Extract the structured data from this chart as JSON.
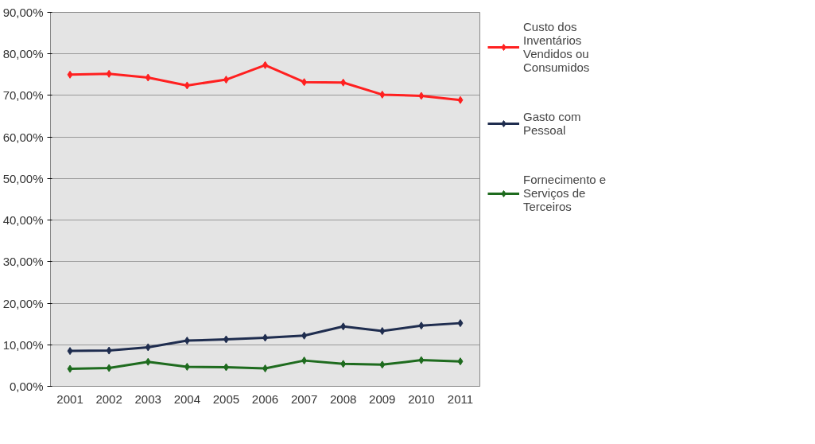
{
  "chart_data": {
    "type": "line",
    "categories": [
      "2001",
      "2002",
      "2003",
      "2004",
      "2005",
      "2006",
      "2007",
      "2008",
      "2009",
      "2010",
      "2011"
    ],
    "series": [
      {
        "name": "Custo dos Inventários Vendidos ou Consumidos",
        "color": "#ff2020",
        "values": [
          75.0,
          75.2,
          74.3,
          72.4,
          73.8,
          77.3,
          73.2,
          73.1,
          70.2,
          69.9,
          68.9
        ]
      },
      {
        "name": "Gasto com Pessoal",
        "color": "#1f2d4f",
        "values": [
          8.5,
          8.6,
          9.4,
          11.0,
          11.3,
          11.7,
          12.2,
          14.4,
          13.3,
          14.6,
          15.2
        ]
      },
      {
        "name": "Fornecimento e Serviços de Terceiros",
        "color": "#1e6b1e",
        "values": [
          4.2,
          4.4,
          5.9,
          4.7,
          4.6,
          4.3,
          6.2,
          5.4,
          5.2,
          6.3,
          6.0
        ]
      }
    ],
    "ylim": [
      0,
      90
    ],
    "yticks": [
      {
        "value": 0,
        "label": "0,00%"
      },
      {
        "value": 10,
        "label": "10,00%"
      },
      {
        "value": 20,
        "label": "20,00%"
      },
      {
        "value": 30,
        "label": "30,00%"
      },
      {
        "value": 40,
        "label": "40,00%"
      },
      {
        "value": 50,
        "label": "50,00%"
      },
      {
        "value": 60,
        "label": "60,00%"
      },
      {
        "value": 70,
        "label": "70,00%"
      },
      {
        "value": 80,
        "label": "80,00%"
      },
      {
        "value": 90,
        "label": "90,00%"
      }
    ],
    "grid": "y",
    "legend": "right",
    "marker": "diamond",
    "line_style": "solid"
  }
}
